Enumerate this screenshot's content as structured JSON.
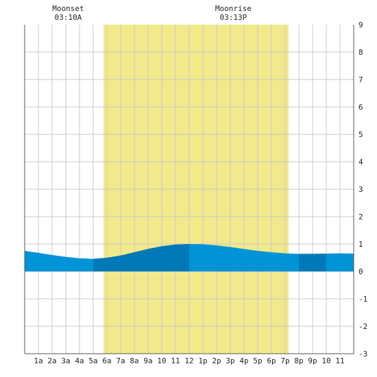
{
  "chart_data": {
    "type": "area",
    "title": "",
    "xlabel": "",
    "ylabel": "",
    "x_unit": "hour of day",
    "xlim": [
      0,
      24
    ],
    "ylim": [
      -3,
      9
    ],
    "grid": true,
    "x_tick_labels": [
      {
        "hour": 1,
        "label": "1a"
      },
      {
        "hour": 2,
        "label": "2a"
      },
      {
        "hour": 3,
        "label": "3a"
      },
      {
        "hour": 4,
        "label": "4a"
      },
      {
        "hour": 5,
        "label": "5a"
      },
      {
        "hour": 6,
        "label": "6a"
      },
      {
        "hour": 7,
        "label": "7a"
      },
      {
        "hour": 8,
        "label": "8a"
      },
      {
        "hour": 9,
        "label": "9a"
      },
      {
        "hour": 10,
        "label": "10"
      },
      {
        "hour": 11,
        "label": "11"
      },
      {
        "hour": 12,
        "label": "12"
      },
      {
        "hour": 13,
        "label": "1p"
      },
      {
        "hour": 14,
        "label": "2p"
      },
      {
        "hour": 15,
        "label": "3p"
      },
      {
        "hour": 16,
        "label": "4p"
      },
      {
        "hour": 17,
        "label": "5p"
      },
      {
        "hour": 18,
        "label": "6p"
      },
      {
        "hour": 19,
        "label": "7p"
      },
      {
        "hour": 20,
        "label": "8p"
      },
      {
        "hour": 21,
        "label": "9p"
      },
      {
        "hour": 22,
        "label": "10"
      },
      {
        "hour": 23,
        "label": "11"
      }
    ],
    "y_ticks": [
      -3,
      -2,
      -1,
      0,
      1,
      2,
      3,
      4,
      5,
      6,
      7,
      8,
      9
    ],
    "daylight": {
      "start_hour": 5.75,
      "end_hour": 19.25
    },
    "moon_events": [
      {
        "name": "Moonset",
        "time": "03:10A",
        "hour": 3.17
      },
      {
        "name": "Moonrise",
        "time": "03:13P",
        "hour": 15.22
      }
    ],
    "tide_series": {
      "x": [
        0,
        1,
        2,
        3,
        4,
        5,
        6,
        7,
        8,
        9,
        10,
        11,
        12,
        13,
        14,
        15,
        16,
        17,
        18,
        19,
        20,
        21,
        22,
        23,
        24
      ],
      "y": [
        0.75,
        0.68,
        0.6,
        0.53,
        0.48,
        0.46,
        0.5,
        0.58,
        0.7,
        0.82,
        0.92,
        0.98,
        1.0,
        0.99,
        0.95,
        0.89,
        0.82,
        0.75,
        0.7,
        0.66,
        0.64,
        0.64,
        0.65,
        0.66,
        0.65
      ]
    },
    "emphasis_bands": [
      {
        "start_hour": 5.0,
        "end_hour": 12.0
      },
      {
        "start_hour": 20.0,
        "end_hour": 22.0
      }
    ],
    "colors": {
      "background": "#ffffff",
      "grid": "#c8c8c8",
      "axis": "#555555",
      "daylight": "#f2e98b",
      "tide_fill": "#0093d6",
      "tide_emphasis": "#0079b6"
    }
  }
}
